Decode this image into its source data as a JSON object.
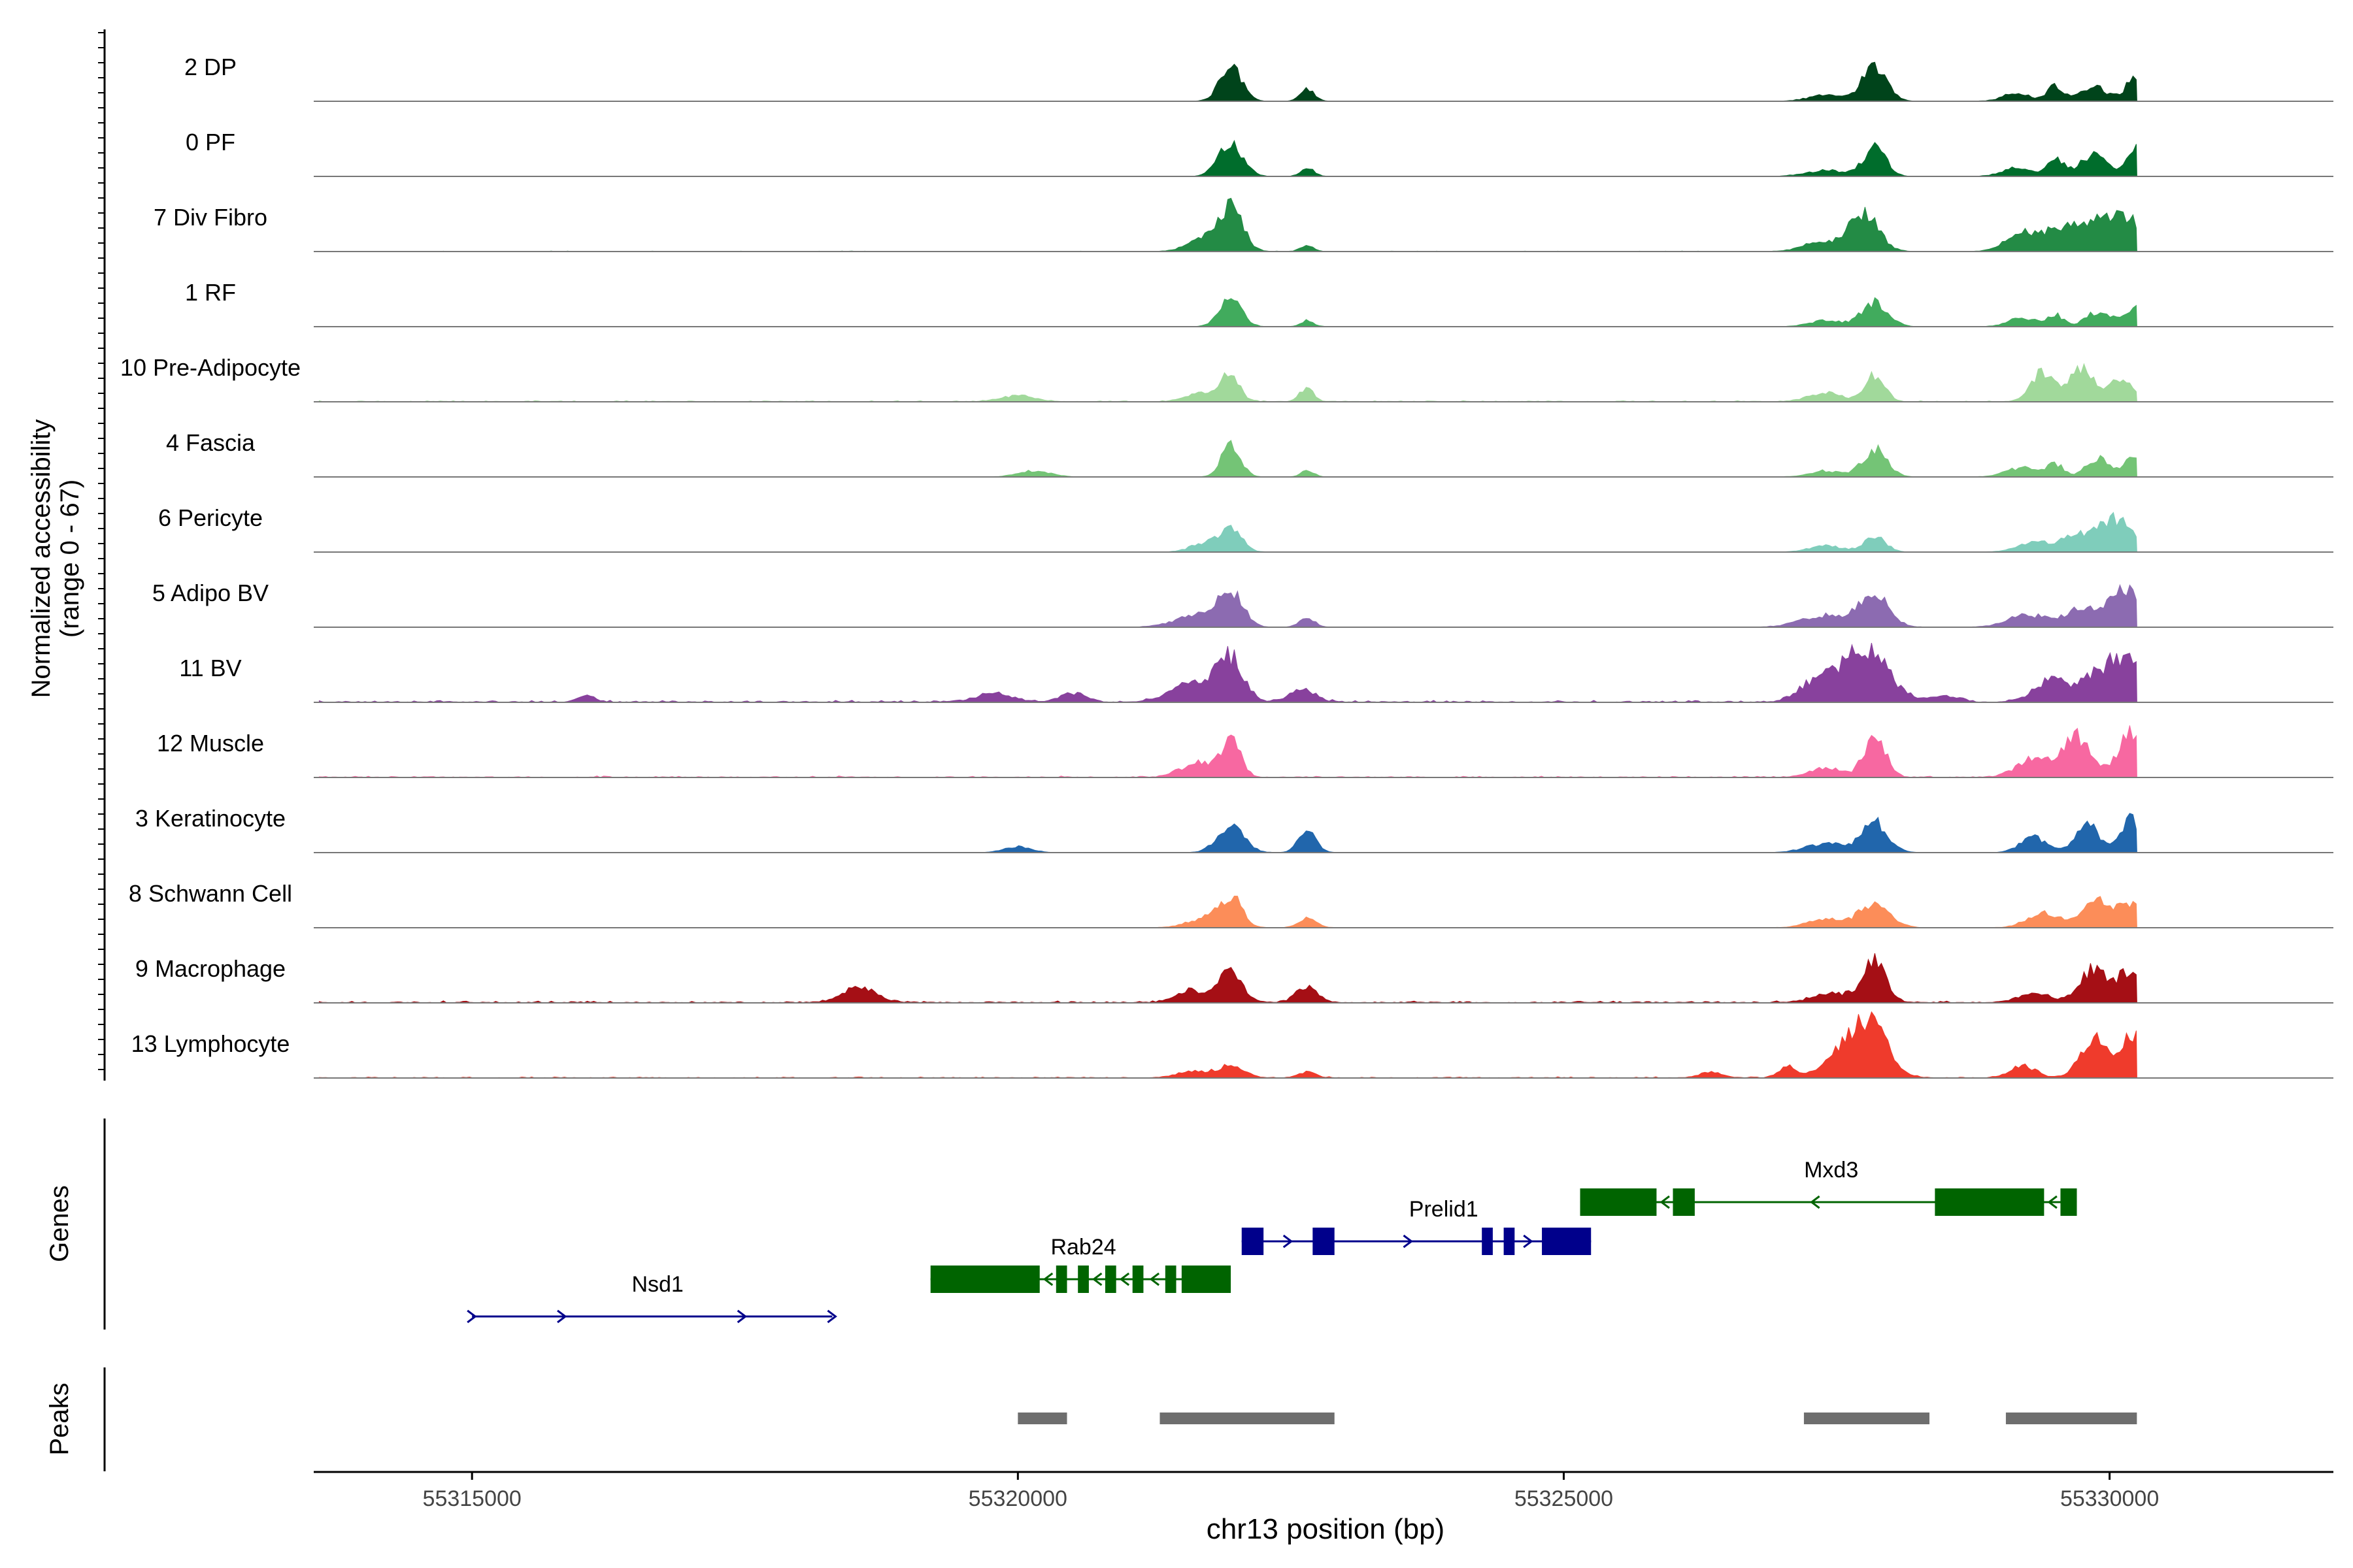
{
  "chart_data": {
    "type": "area",
    "title": "",
    "xlabel": "chr13 position (bp)",
    "ylabel_line1": "Normalized accessibility",
    "ylabel_line2": "(range 0 - 67)",
    "y_range": [
      0,
      67
    ],
    "x_range": [
      55313550,
      55332050
    ],
    "x_ticks": [
      55315000,
      55320000,
      55325000,
      55330000
    ],
    "x_tick_labels": [
      "55315000",
      "55320000",
      "55325000",
      "55330000"
    ],
    "track_start": 55313600,
    "track_end": 55330250,
    "panels": {
      "coverage": "",
      "genes": "Genes",
      "peaks": "Peaks"
    },
    "series": [
      {
        "name": "2 DP",
        "color": "#00441b",
        "base": 0.04,
        "peaks": [
          [
            55321950,
            100,
            11
          ],
          [
            55322650,
            65,
            4
          ],
          [
            55327850,
            110,
            12
          ],
          [
            55327400,
            160,
            2
          ],
          [
            55329150,
            120,
            3
          ],
          [
            55329500,
            70,
            5
          ],
          [
            55329850,
            120,
            5
          ],
          [
            55330250,
            90,
            9
          ]
        ]
      },
      {
        "name": "0 PF",
        "color": "#006d2c",
        "base": 0.04,
        "peaks": [
          [
            55321950,
            110,
            11
          ],
          [
            55322650,
            60,
            3
          ],
          [
            55327850,
            100,
            10
          ],
          [
            55327400,
            180,
            2
          ],
          [
            55329150,
            130,
            3
          ],
          [
            55329500,
            80,
            6
          ],
          [
            55329850,
            120,
            7
          ],
          [
            55330250,
            90,
            10
          ]
        ]
      },
      {
        "name": "7 Div Fibro",
        "color": "#238b45",
        "base": 0.08,
        "peaks": [
          [
            55321950,
            110,
            14
          ],
          [
            55321700,
            150,
            4
          ],
          [
            55322650,
            60,
            2
          ],
          [
            55327750,
            130,
            13
          ],
          [
            55327350,
            160,
            3
          ],
          [
            55329200,
            150,
            6
          ],
          [
            55329650,
            200,
            9
          ],
          [
            55330100,
            180,
            12
          ]
        ]
      },
      {
        "name": "1 RF",
        "color": "#41ab5d",
        "base": 0.04,
        "peaks": [
          [
            55321950,
            100,
            9
          ],
          [
            55322650,
            60,
            2
          ],
          [
            55327850,
            120,
            8
          ],
          [
            55327400,
            150,
            2
          ],
          [
            55329200,
            130,
            3
          ],
          [
            55329500,
            70,
            4
          ],
          [
            55329900,
            120,
            5
          ],
          [
            55330250,
            90,
            6
          ]
        ]
      },
      {
        "name": "10 Pre-Adipocyte",
        "color": "#a1d99b",
        "base": 0.2,
        "peaks": [
          [
            55321950,
            80,
            9
          ],
          [
            55321700,
            150,
            3
          ],
          [
            55322650,
            60,
            5
          ],
          [
            55320000,
            150,
            2
          ],
          [
            55327850,
            90,
            9
          ],
          [
            55327400,
            150,
            3
          ],
          [
            55329400,
            110,
            10
          ],
          [
            55329750,
            110,
            11
          ],
          [
            55330100,
            110,
            8
          ]
        ]
      },
      {
        "name": "4 Fascia",
        "color": "#74c476",
        "base": 0.04,
        "peaks": [
          [
            55321950,
            90,
            10
          ],
          [
            55322650,
            60,
            2
          ],
          [
            55320150,
            150,
            2
          ],
          [
            55327850,
            110,
            9
          ],
          [
            55327400,
            150,
            2
          ],
          [
            55329200,
            150,
            3
          ],
          [
            55329500,
            80,
            4
          ],
          [
            55329900,
            110,
            6
          ],
          [
            55330250,
            90,
            8
          ]
        ]
      },
      {
        "name": "6 Pericyte",
        "color": "#7fcdbb",
        "base": 0.04,
        "peaks": [
          [
            55321950,
            100,
            8
          ],
          [
            55321700,
            120,
            3
          ],
          [
            55327850,
            100,
            5
          ],
          [
            55327400,
            150,
            2
          ],
          [
            55329300,
            150,
            3
          ],
          [
            55329700,
            150,
            5
          ],
          [
            55330050,
            150,
            11
          ]
        ]
      },
      {
        "name": "5 Adipo BV",
        "color": "#8c6bb1",
        "base": 0.06,
        "peaks": [
          [
            55321950,
            110,
            11
          ],
          [
            55321650,
            200,
            4
          ],
          [
            55322650,
            70,
            3
          ],
          [
            55327850,
            130,
            11
          ],
          [
            55327400,
            220,
            4
          ],
          [
            55329250,
            180,
            4
          ],
          [
            55329750,
            150,
            6
          ],
          [
            55330150,
            140,
            13
          ]
        ]
      },
      {
        "name": "11 BV",
        "color": "#88419d",
        "base": 0.35,
        "peaks": [
          [
            55321950,
            120,
            14
          ],
          [
            55321600,
            200,
            6
          ],
          [
            55322600,
            120,
            4
          ],
          [
            55327750,
            220,
            17
          ],
          [
            55327300,
            150,
            6
          ],
          [
            55328500,
            120,
            2
          ],
          [
            55329450,
            150,
            7
          ],
          [
            55329850,
            150,
            8
          ],
          [
            55330150,
            150,
            14
          ],
          [
            55316050,
            80,
            2
          ],
          [
            55319800,
            150,
            3
          ],
          [
            55320500,
            120,
            3
          ]
        ]
      },
      {
        "name": "12 Muscle",
        "color": "#f768a1",
        "base": 0.25,
        "peaks": [
          [
            55321950,
            90,
            12
          ],
          [
            55321650,
            150,
            5
          ],
          [
            55327850,
            100,
            13
          ],
          [
            55327400,
            150,
            3
          ],
          [
            55329300,
            150,
            6
          ],
          [
            55329700,
            130,
            13
          ],
          [
            55330200,
            120,
            15
          ]
        ]
      },
      {
        "name": "3 Keratinocyte",
        "color": "#2166ac",
        "base": 0.04,
        "peaks": [
          [
            55321950,
            120,
            9
          ],
          [
            55322650,
            80,
            7
          ],
          [
            55320000,
            120,
            2
          ],
          [
            55327850,
            120,
            10
          ],
          [
            55327400,
            180,
            3
          ],
          [
            55329300,
            120,
            5
          ],
          [
            55329800,
            110,
            9
          ],
          [
            55330200,
            100,
            11
          ]
        ]
      },
      {
        "name": "8 Schwann Cell",
        "color": "#fc8d59",
        "base": 0.05,
        "peaks": [
          [
            55321950,
            100,
            10
          ],
          [
            55321700,
            150,
            3
          ],
          [
            55322650,
            80,
            3
          ],
          [
            55327850,
            140,
            8
          ],
          [
            55327400,
            160,
            3
          ],
          [
            55329400,
            150,
            5
          ],
          [
            55329900,
            130,
            9
          ],
          [
            55330200,
            100,
            8
          ]
        ]
      },
      {
        "name": "9 Macrophage",
        "color": "#a50f15",
        "base": 0.35,
        "peaks": [
          [
            55321950,
            110,
            10
          ],
          [
            55321600,
            150,
            4
          ],
          [
            55322650,
            100,
            5
          ],
          [
            55318550,
            150,
            5
          ],
          [
            55327850,
            100,
            14
          ],
          [
            55327500,
            200,
            3
          ],
          [
            55329300,
            150,
            3
          ],
          [
            55329850,
            120,
            11
          ],
          [
            55330200,
            120,
            11
          ]
        ]
      },
      {
        "name": "13 Lymphocyte",
        "color": "#ef3b2c",
        "base": 0.2,
        "peaks": [
          [
            55321950,
            120,
            4
          ],
          [
            55321600,
            150,
            2
          ],
          [
            55322650,
            80,
            2
          ],
          [
            55327800,
            160,
            18
          ],
          [
            55327500,
            150,
            7
          ],
          [
            55327050,
            80,
            4
          ],
          [
            55326350,
            100,
            2
          ],
          [
            55329850,
            120,
            13
          ],
          [
            55330200,
            100,
            15
          ],
          [
            55329200,
            120,
            4
          ]
        ]
      }
    ],
    "genes": [
      {
        "name": "Nsd1",
        "strand": "+",
        "color": "#00008b",
        "row": 3,
        "start": 55315000,
        "end": 55318300,
        "label_x": 55316700,
        "exons": []
      },
      {
        "name": "Rab24",
        "strand": "-",
        "color": "#006400",
        "row": 2,
        "start": 55319200,
        "end": 55321950,
        "label_x": 55320600,
        "exons": [
          [
            55319200,
            55320200
          ],
          [
            55320350,
            55320450
          ],
          [
            55320550,
            55320650
          ],
          [
            55320800,
            55320900
          ],
          [
            55321050,
            55321150
          ],
          [
            55321350,
            55321450
          ],
          [
            55321500,
            55321950
          ]
        ]
      },
      {
        "name": "Prelid1",
        "strand": "+",
        "color": "#00008b",
        "row": 1,
        "start": 55322050,
        "end": 55325250,
        "label_x": 55323900,
        "exons": [
          [
            55322050,
            55322250
          ],
          [
            55322700,
            55322900
          ],
          [
            55324250,
            55324350
          ],
          [
            55324450,
            55324550
          ],
          [
            55324800,
            55325250
          ]
        ]
      },
      {
        "name": "Mxd3",
        "strand": "-",
        "color": "#006400",
        "row": 0,
        "start": 55325150,
        "end": 55329700,
        "label_x": 55327450,
        "exons": [
          [
            55325150,
            55325850
          ],
          [
            55326000,
            55326200
          ],
          [
            55328400,
            55329400
          ],
          [
            55329550,
            55329700
          ]
        ]
      }
    ],
    "peaks": [
      [
        55320000,
        55320450
      ],
      [
        55321300,
        55322900
      ],
      [
        55327200,
        55328350
      ],
      [
        55329050,
        55330250
      ]
    ]
  }
}
